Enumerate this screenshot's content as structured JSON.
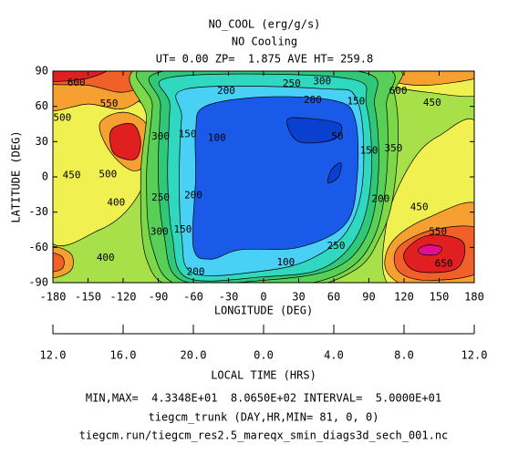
{
  "chart_data": {
    "type": "contour",
    "title": "NO_COOL (erg/g/s)",
    "subtitle": "NO Cooling",
    "info": "UT= 0.00 ZP=  1.875 AVE HT= 259.8",
    "xlabel": "LONGITUDE (DEG)",
    "ylabel": "LATITUDE (DEG)",
    "xlim": [
      -180,
      180
    ],
    "ylim": [
      -90,
      90
    ],
    "xticks": [
      -180,
      -150,
      -120,
      -90,
      -60,
      -30,
      0,
      30,
      60,
      90,
      120,
      150,
      180
    ],
    "yticks": [
      -90,
      -60,
      -30,
      0,
      30,
      60,
      90
    ],
    "lt_label": "LOCAL TIME (HRS)",
    "lt_ticks": [
      {
        "value": -180,
        "label": "12.0"
      },
      {
        "value": -120,
        "label": "16.0"
      },
      {
        "value": -60,
        "label": "20.0"
      },
      {
        "value": 0,
        "label": "0.0"
      },
      {
        "value": 60,
        "label": "4.0"
      },
      {
        "value": 120,
        "label": "8.0"
      },
      {
        "value": 180,
        "label": "12.0"
      }
    ],
    "background": "#a8e04a",
    "regions": [
      {
        "level": 450,
        "color": "#f0f050",
        "points": [
          [
            -185,
            75
          ],
          [
            -150,
            72
          ],
          [
            -100,
            60
          ],
          [
            -95,
            20
          ],
          [
            -110,
            -20
          ],
          [
            -140,
            -45
          ],
          [
            -185,
            -50
          ]
        ]
      },
      {
        "level": 450,
        "color": "#f0f050",
        "points": [
          [
            185,
            40
          ],
          [
            150,
            35
          ],
          [
            125,
            10
          ],
          [
            105,
            -40
          ],
          [
            110,
            -95
          ],
          [
            185,
            -95
          ]
        ]
      },
      {
        "level": 450,
        "color": "#f0f050",
        "points": [
          [
            100,
            95
          ],
          [
            100,
            80
          ],
          [
            140,
            72
          ],
          [
            185,
            70
          ],
          [
            185,
            95
          ]
        ]
      },
      {
        "level": 500,
        "color": "#f5a030",
        "points": [
          [
            -185,
            95
          ],
          [
            -185,
            58
          ],
          [
            -150,
            62
          ],
          [
            -120,
            58
          ],
          [
            -95,
            72
          ],
          [
            -70,
            82
          ],
          [
            -60,
            95
          ]
        ]
      },
      {
        "level": 500,
        "color": "#f5a030",
        "points": [
          [
            -140,
            45
          ],
          [
            -130,
            20
          ],
          [
            -110,
            5
          ],
          [
            -95,
            20
          ],
          [
            -100,
            45
          ],
          [
            -120,
            55
          ]
        ]
      },
      {
        "level": 500,
        "color": "#f5a030",
        "points": [
          [
            185,
            -25
          ],
          [
            140,
            -35
          ],
          [
            110,
            -55
          ],
          [
            105,
            -80
          ],
          [
            130,
            -95
          ],
          [
            185,
            -95
          ]
        ]
      },
      {
        "level": 500,
        "color": "#f5a030",
        "points": [
          [
            115,
            95
          ],
          [
            110,
            82
          ],
          [
            140,
            78
          ],
          [
            185,
            85
          ],
          [
            185,
            95
          ]
        ]
      },
      {
        "level": 500,
        "color": "#f5a030",
        "points": [
          [
            -185,
            -60
          ],
          [
            -165,
            -65
          ],
          [
            -165,
            -80
          ],
          [
            -185,
            -85
          ]
        ]
      },
      {
        "level": 550,
        "color": "#f06028",
        "points": [
          [
            -185,
            95
          ],
          [
            -185,
            80
          ],
          [
            -150,
            78
          ],
          [
            -120,
            72
          ],
          [
            -95,
            82
          ],
          [
            -90,
            95
          ]
        ]
      },
      {
        "level": 550,
        "color": "#f06028",
        "points": [
          [
            185,
            -45
          ],
          [
            145,
            -45
          ],
          [
            115,
            -60
          ],
          [
            115,
            -80
          ],
          [
            140,
            -88
          ],
          [
            185,
            -80
          ]
        ]
      },
      {
        "level": 550,
        "color": "#f06028",
        "points": [
          [
            -185,
            -65
          ],
          [
            -172,
            -68
          ],
          [
            -172,
            -78
          ],
          [
            -185,
            -80
          ]
        ]
      },
      {
        "level": 600,
        "color": "#e02020",
        "points": [
          [
            -130,
            40
          ],
          [
            -128,
            20
          ],
          [
            -110,
            15
          ],
          [
            -105,
            30
          ],
          [
            -112,
            45
          ]
        ]
      },
      {
        "level": 600,
        "color": "#e02020",
        "points": [
          [
            -185,
            95
          ],
          [
            -185,
            82
          ],
          [
            -150,
            84
          ],
          [
            -130,
            95
          ]
        ]
      },
      {
        "level": 600,
        "color": "#e02020",
        "points": [
          [
            170,
            -55
          ],
          [
            140,
            -50
          ],
          [
            120,
            -65
          ],
          [
            130,
            -80
          ],
          [
            165,
            -78
          ]
        ]
      },
      {
        "level": 650,
        "color": "#e0108c",
        "points": [
          [
            132,
            -62
          ],
          [
            140,
            -58
          ],
          [
            152,
            -60
          ],
          [
            148,
            -66
          ],
          [
            136,
            -66
          ]
        ]
      },
      {
        "level": 350,
        "color": "#7cd848",
        "points": [
          [
            -100,
            95
          ],
          [
            100,
            95
          ],
          [
            112,
            70
          ],
          [
            115,
            30
          ],
          [
            110,
            -20
          ],
          [
            100,
            -50
          ],
          [
            80,
            -78
          ],
          [
            30,
            -95
          ],
          [
            -70,
            -95
          ],
          [
            -100,
            -70
          ],
          [
            -105,
            0
          ],
          [
            -100,
            50
          ]
        ]
      },
      {
        "level": 300,
        "color": "#58d058",
        "points": [
          [
            -95,
            95
          ],
          [
            95,
            95
          ],
          [
            105,
            60
          ],
          [
            105,
            0
          ],
          [
            95,
            -50
          ],
          [
            70,
            -80
          ],
          [
            20,
            -93
          ],
          [
            -70,
            -93
          ],
          [
            -95,
            -60
          ],
          [
            -100,
            0
          ],
          [
            -95,
            60
          ]
        ]
      },
      {
        "level": 250,
        "color": "#30c878",
        "points": [
          [
            -85,
            90
          ],
          [
            80,
            90
          ],
          [
            95,
            60
          ],
          [
            98,
            0
          ],
          [
            88,
            -50
          ],
          [
            60,
            -78
          ],
          [
            0,
            -88
          ],
          [
            -70,
            -88
          ],
          [
            -85,
            -50
          ],
          [
            -90,
            0
          ],
          [
            -88,
            60
          ]
        ]
      },
      {
        "level": 200,
        "color": "#30d8c0",
        "points": [
          [
            -78,
            85
          ],
          [
            70,
            84
          ],
          [
            88,
            60
          ],
          [
            92,
            0
          ],
          [
            80,
            -50
          ],
          [
            50,
            -78
          ],
          [
            0,
            -85
          ],
          [
            -65,
            -86
          ],
          [
            -78,
            -50
          ],
          [
            -82,
            0
          ],
          [
            -80,
            60
          ]
        ]
      },
      {
        "level": 150,
        "color": "#48d0f5",
        "points": [
          [
            -65,
            75
          ],
          [
            50,
            75
          ],
          [
            80,
            65
          ],
          [
            85,
            0
          ],
          [
            72,
            -45
          ],
          [
            40,
            -70
          ],
          [
            0,
            -80
          ],
          [
            -60,
            -82
          ],
          [
            -70,
            -50
          ],
          [
            -72,
            0
          ],
          [
            -70,
            50
          ]
        ]
      },
      {
        "level": 100,
        "color": "#1a5ae8",
        "points": [
          [
            -50,
            60
          ],
          [
            0,
            68
          ],
          [
            60,
            65
          ],
          [
            78,
            50
          ],
          [
            80,
            0
          ],
          [
            70,
            -40
          ],
          [
            30,
            -60
          ],
          [
            -20,
            -62
          ],
          [
            -45,
            -70
          ],
          [
            -60,
            -60
          ],
          [
            -58,
            0
          ],
          [
            -58,
            40
          ]
        ]
      },
      {
        "level": 50,
        "color": "#0a40d0",
        "points": [
          [
            20,
            48
          ],
          [
            35,
            50
          ],
          [
            65,
            45
          ],
          [
            60,
            32
          ],
          [
            30,
            30
          ]
        ]
      },
      {
        "level": 50,
        "color": "#0a40d0",
        "points": [
          [
            58,
            6
          ],
          [
            66,
            12
          ],
          [
            64,
            0
          ],
          [
            55,
            -5
          ]
        ]
      }
    ],
    "contour_labels": [
      {
        "value": 600,
        "x": -160,
        "y": 80
      },
      {
        "value": 550,
        "x": -132,
        "y": 62
      },
      {
        "value": 500,
        "x": -172,
        "y": 50
      },
      {
        "value": 500,
        "x": -133,
        "y": 2
      },
      {
        "value": 450,
        "x": -164,
        "y": 1
      },
      {
        "value": 400,
        "x": -135,
        "y": -69
      },
      {
        "value": 400,
        "x": -126,
        "y": -22
      },
      {
        "value": 300,
        "x": -88,
        "y": 34
      },
      {
        "value": 250,
        "x": -88,
        "y": -18
      },
      {
        "value": 300,
        "x": -89,
        "y": -47
      },
      {
        "value": 150,
        "x": -65,
        "y": 36
      },
      {
        "value": 100,
        "x": -40,
        "y": 33
      },
      {
        "value": 200,
        "x": -60,
        "y": -16
      },
      {
        "value": 150,
        "x": -69,
        "y": -45
      },
      {
        "value": 200,
        "x": -58,
        "y": -81
      },
      {
        "value": 100,
        "x": 19,
        "y": -73
      },
      {
        "value": 200,
        "x": -32,
        "y": 73
      },
      {
        "value": 250,
        "x": 24,
        "y": 79
      },
      {
        "value": 300,
        "x": 50,
        "y": 81
      },
      {
        "value": 200,
        "x": 42,
        "y": 65
      },
      {
        "value": 150,
        "x": 79,
        "y": 64
      },
      {
        "value": 50,
        "x": 63,
        "y": 34
      },
      {
        "value": 150,
        "x": 90,
        "y": 22
      },
      {
        "value": 200,
        "x": 100,
        "y": -19
      },
      {
        "value": 350,
        "x": 111,
        "y": 24
      },
      {
        "value": 250,
        "x": 62,
        "y": -59
      },
      {
        "value": 450,
        "x": 144,
        "y": 63
      },
      {
        "value": 600,
        "x": 115,
        "y": 73
      },
      {
        "value": 450,
        "x": 133,
        "y": -26
      },
      {
        "value": 550,
        "x": 149,
        "y": -47
      },
      {
        "value": 650,
        "x": 154,
        "y": -74
      }
    ],
    "footer": [
      "MIN,MAX=  4.3348E+01  8.0650E+02 INTERVAL=  5.0000E+01",
      "tiegcm_trunk (DAY,HR,MIN= 81, 0, 0)",
      "tiegcm.run/tiegcm_res2.5_mareqx_smin_diags3d_sech_001.nc"
    ]
  }
}
